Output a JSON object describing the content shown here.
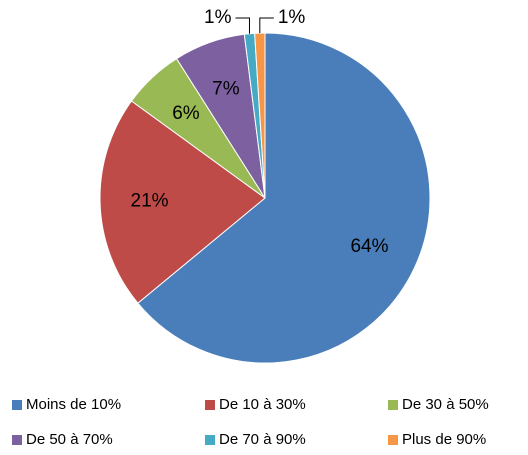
{
  "chart_data": {
    "type": "pie",
    "categories": [
      "Moins de 10%",
      "De 10 à 30%",
      "De 30 à 50%",
      "De 50 à 70%",
      "De 70 à 90%",
      "Plus de 90%"
    ],
    "values": [
      64,
      21,
      6,
      7,
      1,
      1
    ],
    "value_labels": [
      "64%",
      "21%",
      "6%",
      "7%",
      "1%",
      "1%"
    ],
    "colors": [
      "#4a7ebb",
      "#be4b48",
      "#98b954",
      "#7d60a0",
      "#46aac5",
      "#f79646"
    ],
    "legend": "bottom"
  }
}
